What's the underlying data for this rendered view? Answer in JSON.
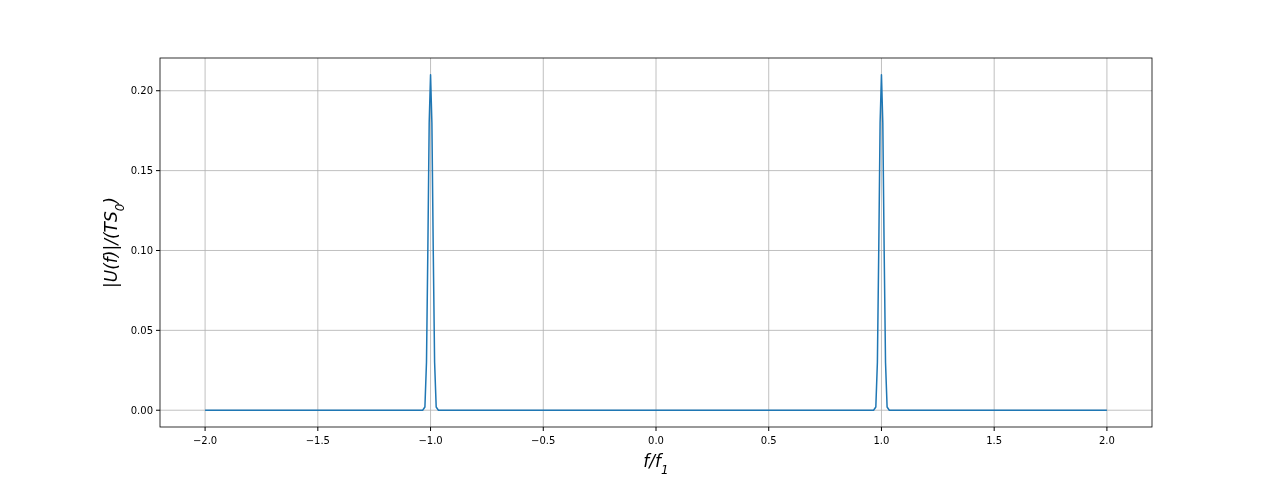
{
  "chart_data": {
    "type": "line",
    "xlabel": "f/f$_{1}$",
    "ylabel": "|U(f)|/(TS$_{0}$)",
    "x": [
      -2,
      -1.5,
      -1.035,
      -1.025,
      -1.018,
      -1.012,
      -1.006,
      -1.0,
      -0.994,
      -0.988,
      -0.982,
      -0.975,
      -0.965,
      -0.5,
      0,
      0.5,
      0.965,
      0.975,
      0.982,
      0.988,
      0.994,
      1.0,
      1.006,
      1.012,
      1.018,
      1.025,
      1.035,
      1.5,
      2
    ],
    "series": [
      {
        "color": "#1f77b4",
        "values": [
          0,
          0,
          0,
          0.002,
          0.03,
          0.1,
          0.18,
          0.21,
          0.18,
          0.1,
          0.03,
          0.002,
          0,
          0,
          0,
          0,
          0,
          0.002,
          0.03,
          0.1,
          0.18,
          0.21,
          0.18,
          0.1,
          0.03,
          0.002,
          0,
          0,
          0
        ]
      }
    ],
    "xlim": [
      -2.2,
      2.2
    ],
    "ylim": [
      -0.0105,
      0.2205
    ],
    "xticks": [
      {
        "value": -2,
        "label": "−2.0"
      },
      {
        "value": -1.5,
        "label": "−1.5"
      },
      {
        "value": -1,
        "label": "−1.0"
      },
      {
        "value": -0.5,
        "label": "−0.5"
      },
      {
        "value": 0,
        "label": "0.0"
      },
      {
        "value": 0.5,
        "label": "0.5"
      },
      {
        "value": 1,
        "label": "1.0"
      },
      {
        "value": 1.5,
        "label": "1.5"
      },
      {
        "value": 2,
        "label": "2.0"
      }
    ],
    "yticks": [
      {
        "value": 0,
        "label": "0.00"
      },
      {
        "value": 0.05,
        "label": "0.05"
      },
      {
        "value": 0.1,
        "label": "0.10"
      },
      {
        "value": 0.15,
        "label": "0.15"
      },
      {
        "value": 0.2,
        "label": "0.20"
      }
    ],
    "grid": true,
    "marker": "none",
    "line_style": "solid"
  }
}
